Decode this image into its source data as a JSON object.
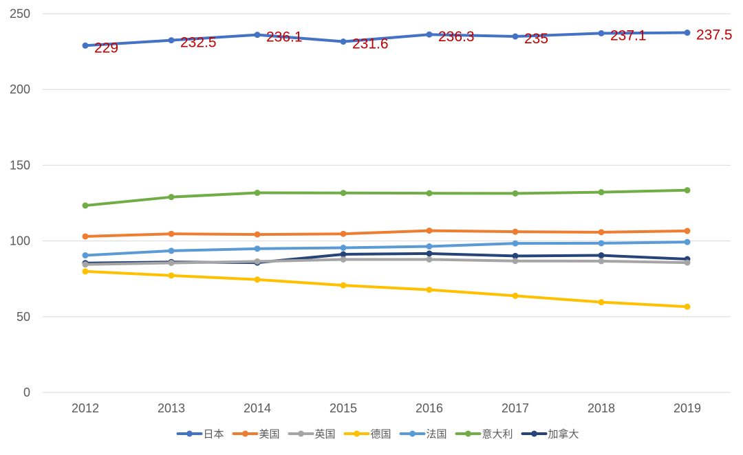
{
  "chart_data": {
    "type": "line",
    "title": "",
    "xlabel": "",
    "ylabel": "",
    "ylim": [
      0,
      250
    ],
    "yticks": [
      0,
      50,
      100,
      150,
      200,
      250
    ],
    "grid": true,
    "legend_position": "bottom",
    "label_color": "#c00000",
    "categories": [
      "2012",
      "2013",
      "2014",
      "2015",
      "2016",
      "2017",
      "2018",
      "2019"
    ],
    "series": [
      {
        "name": "日本",
        "color": "#4472c4",
        "values": [
          229,
          232.5,
          236.1,
          231.6,
          236.3,
          235,
          237.1,
          237.5
        ],
        "labels": [
          "229",
          "232.5",
          "236.1",
          "231.6",
          "236.3",
          "235",
          "237.1",
          "237.5"
        ]
      },
      {
        "name": "美国",
        "color": "#ed7d31",
        "values": [
          103,
          104.7,
          104.3,
          104.7,
          106.8,
          106.1,
          105.8,
          106.6
        ]
      },
      {
        "name": "英国",
        "color": "#a5a5a5",
        "values": [
          84.5,
          85.5,
          86.5,
          87.8,
          87.8,
          86.8,
          86.7,
          85.7
        ]
      },
      {
        "name": "德国",
        "color": "#ffc000",
        "values": [
          79.9,
          77.2,
          74.5,
          70.7,
          67.8,
          63.8,
          59.6,
          56.6
        ]
      },
      {
        "name": "法国",
        "color": "#5b9bd5",
        "values": [
          90.5,
          93.5,
          94.9,
          95.5,
          96.4,
          98.4,
          98.5,
          99.3
        ]
      },
      {
        "name": "意大利",
        "color": "#70ad47",
        "values": [
          123.4,
          129,
          131.8,
          131.7,
          131.5,
          131.4,
          132.2,
          133.5
        ]
      },
      {
        "name": "加拿大",
        "color": "#264478",
        "values": [
          85.4,
          86.1,
          85.7,
          91.2,
          91.7,
          90.1,
          90.5,
          88
        ]
      }
    ]
  }
}
